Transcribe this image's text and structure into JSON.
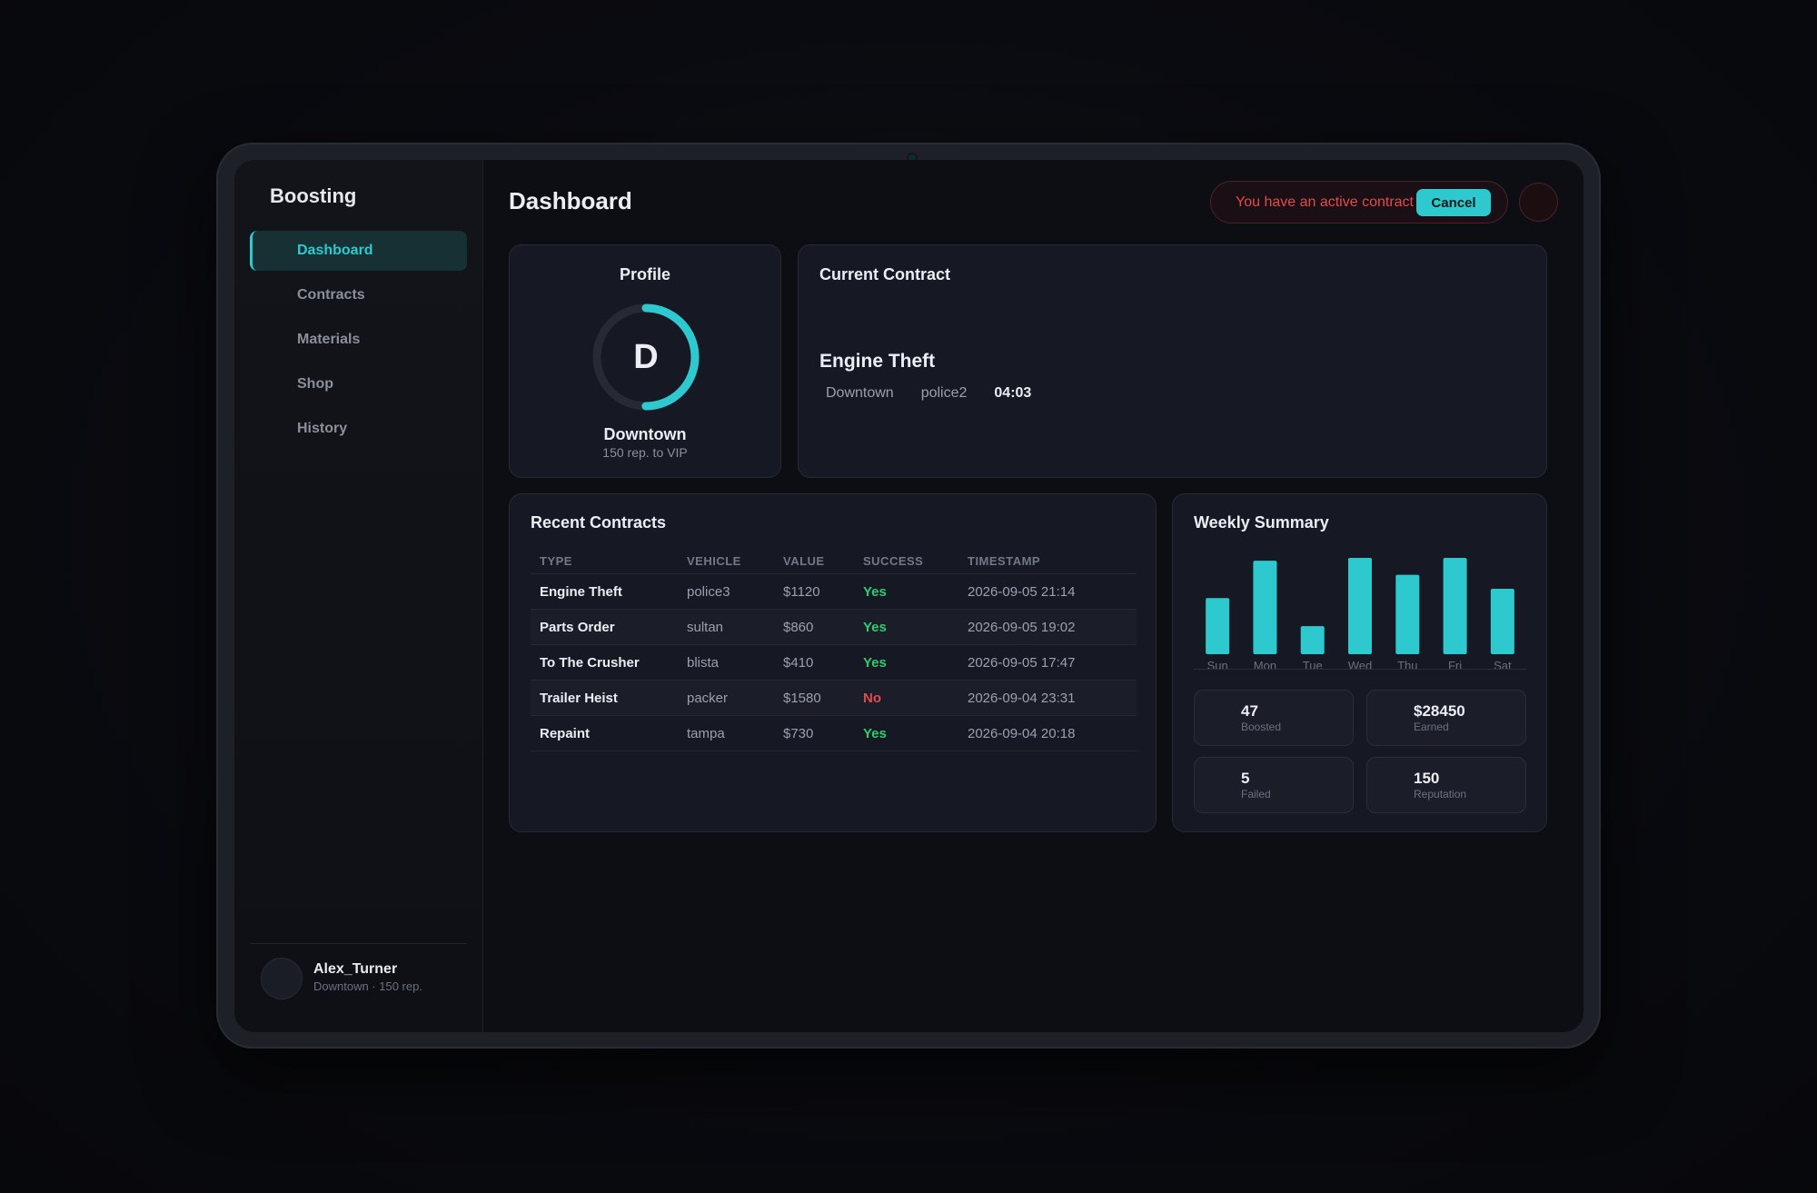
{
  "sidebar": {
    "brand": "Boosting",
    "items": [
      {
        "label": "Dashboard",
        "active": true
      },
      {
        "label": "Contracts",
        "active": false
      },
      {
        "label": "Materials",
        "active": false
      },
      {
        "label": "Shop",
        "active": false
      },
      {
        "label": "History",
        "active": false
      }
    ],
    "user": {
      "name": "Alex_Turner",
      "sub": "Downtown · 150 rep."
    }
  },
  "header": {
    "title": "Dashboard",
    "alert_text": "You have an active contract",
    "cancel_label": "Cancel"
  },
  "profile": {
    "title": "Profile",
    "tier_letter": "D",
    "tier_name": "Downtown",
    "progress_text": "150 rep. to VIP",
    "progress_fraction": 0.5
  },
  "current_contract": {
    "title": "Current Contract",
    "name": "Engine Theft",
    "location": "Downtown",
    "vehicle": "police2",
    "timer": "04:03"
  },
  "recent": {
    "title": "Recent Contracts",
    "columns": [
      "TYPE",
      "VEHICLE",
      "VALUE",
      "SUCCESS",
      "TIMESTAMP"
    ],
    "rows": [
      {
        "type": "Engine Theft",
        "vehicle": "police3",
        "value": "$1120",
        "success": "Yes",
        "timestamp": "2026-09-05 21:14"
      },
      {
        "type": "Parts Order",
        "vehicle": "sultan",
        "value": "$860",
        "success": "Yes",
        "timestamp": "2026-09-05 19:02"
      },
      {
        "type": "To The Crusher",
        "vehicle": "blista",
        "value": "$410",
        "success": "Yes",
        "timestamp": "2026-09-05 17:47"
      },
      {
        "type": "Trailer Heist",
        "vehicle": "packer",
        "value": "$1580",
        "success": "No",
        "timestamp": "2026-09-04 23:31"
      },
      {
        "type": "Repaint",
        "vehicle": "tampa",
        "value": "$730",
        "success": "Yes",
        "timestamp": "2026-09-04 20:18"
      }
    ]
  },
  "weekly": {
    "title": "Weekly Summary",
    "stats": [
      {
        "value": "47",
        "label": "Boosted"
      },
      {
        "value": "$28450",
        "label": "Earned"
      },
      {
        "value": "5",
        "label": "Failed"
      },
      {
        "value": "150",
        "label": "Reputation"
      }
    ]
  },
  "chart_data": {
    "type": "bar",
    "categories": [
      "Sun",
      "Mon",
      "Tue",
      "Wed",
      "Thu",
      "Fri",
      "Sat"
    ],
    "values": [
      6,
      10,
      3,
      10.3,
      8.5,
      10.3,
      7
    ],
    "ylim": [
      0,
      10.5
    ],
    "color": "#2ec9cf"
  },
  "colors": {
    "accent": "#2ec9cf",
    "success": "#2ecc71",
    "danger": "#e24b4b"
  }
}
